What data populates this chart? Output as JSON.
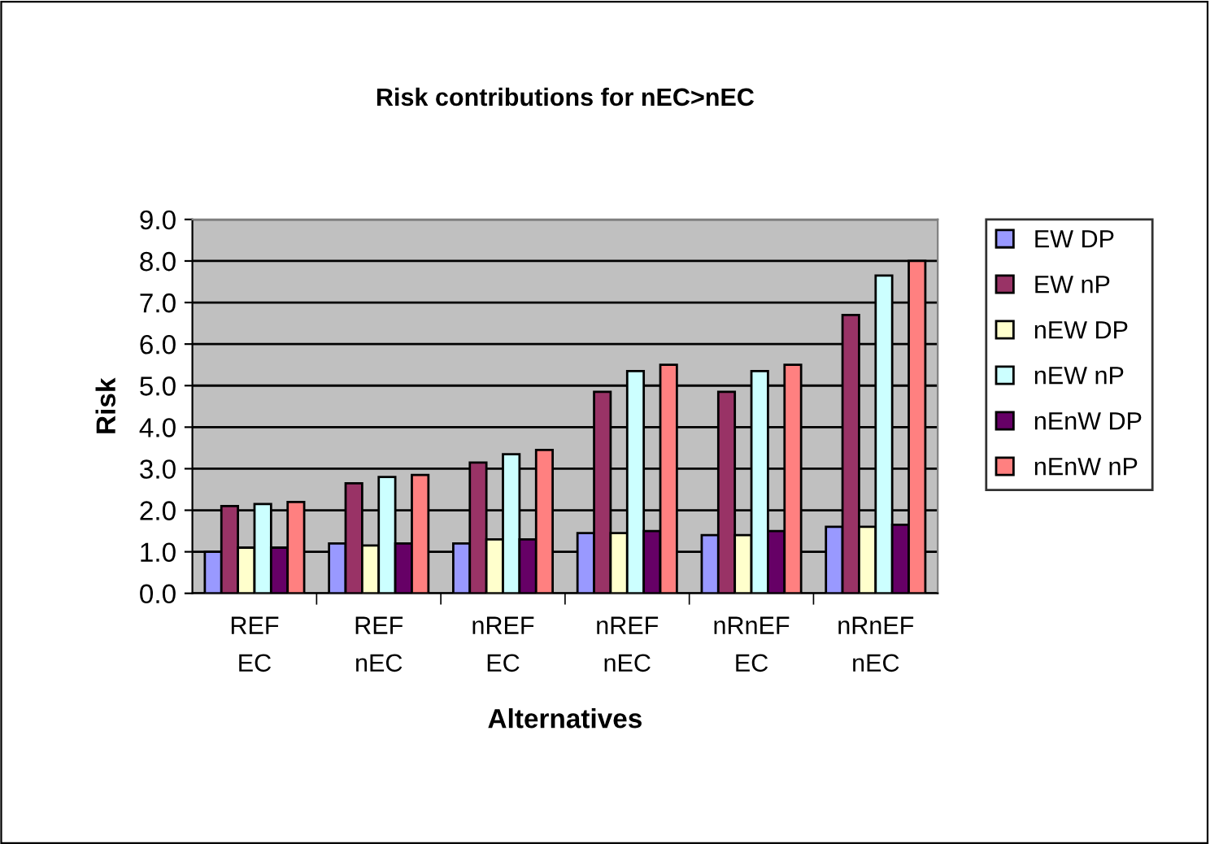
{
  "chart_data": {
    "type": "bar",
    "title": "Risk contributions for nEC>nEC",
    "xlabel": "Alternatives",
    "ylabel": "Risk",
    "categories": [
      "REF\nEC",
      "REF\nnEC",
      "nREF\nEC",
      "nREF\nnEC",
      "nRnEF\nEC",
      "nRnEF\nnEC"
    ],
    "series": [
      {
        "name": "EW DP",
        "color": "#9999ff",
        "values": [
          1.0,
          1.2,
          1.2,
          1.45,
          1.4,
          1.6
        ]
      },
      {
        "name": "EW nP",
        "color": "#993366",
        "values": [
          2.1,
          2.65,
          3.15,
          4.85,
          4.85,
          6.7
        ]
      },
      {
        "name": "nEW DP",
        "color": "#ffffcc",
        "values": [
          1.1,
          1.15,
          1.3,
          1.45,
          1.4,
          1.6
        ]
      },
      {
        "name": "nEW nP",
        "color": "#ccffff",
        "values": [
          2.15,
          2.8,
          3.35,
          5.35,
          5.35,
          7.65
        ]
      },
      {
        "name": "nEnW DP",
        "color": "#660066",
        "values": [
          1.1,
          1.2,
          1.3,
          1.5,
          1.5,
          1.65
        ]
      },
      {
        "name": "nEnW nP",
        "color": "#ff8080",
        "values": [
          2.2,
          2.85,
          3.45,
          5.5,
          5.5,
          8.0
        ]
      }
    ],
    "ylim": [
      0,
      9
    ],
    "yticks": [
      {
        "value": 0,
        "label": "0.0"
      },
      {
        "value": 1,
        "label": "1.0"
      },
      {
        "value": 2,
        "label": "2.0"
      },
      {
        "value": 3,
        "label": "3.0"
      },
      {
        "value": 4,
        "label": "4.0"
      },
      {
        "value": 5,
        "label": "5.0"
      },
      {
        "value": 6,
        "label": "6.0"
      },
      {
        "value": 7,
        "label": "7.0"
      },
      {
        "value": 8,
        "label": "8.0"
      },
      {
        "value": 9,
        "label": "9.0"
      }
    ],
    "grid": "y",
    "legend": "right"
  }
}
